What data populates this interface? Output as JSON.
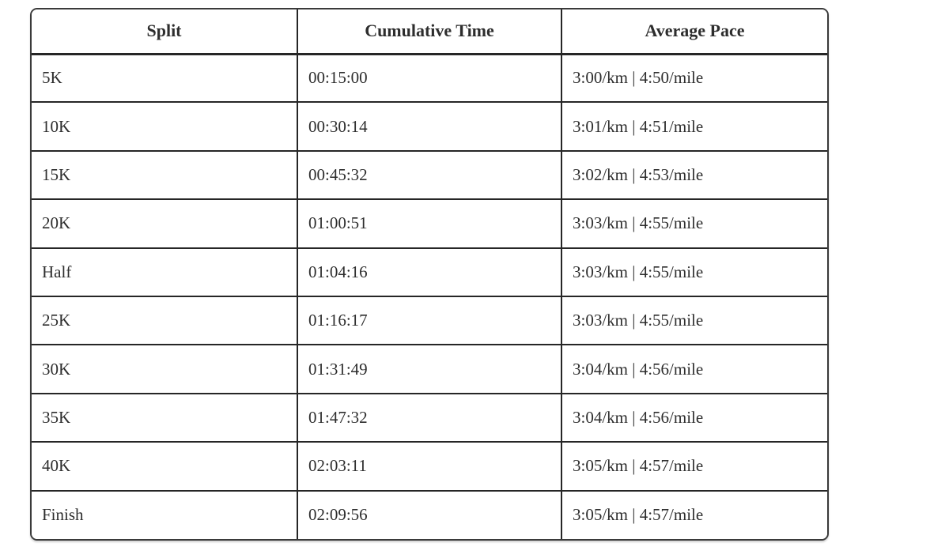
{
  "table": {
    "columns": [
      "Split",
      "Cumulative Time",
      "Average Pace"
    ],
    "rows": [
      [
        "5K",
        "00:15:00",
        "3:00/km | 4:50/mile"
      ],
      [
        "10K",
        "00:30:14",
        "3:01/km | 4:51/mile"
      ],
      [
        "15K",
        "00:45:32",
        "3:02/km | 4:53/mile"
      ],
      [
        "20K",
        "01:00:51",
        "3:03/km | 4:55/mile"
      ],
      [
        "Half",
        "01:04:16",
        "3:03/km | 4:55/mile"
      ],
      [
        "25K",
        "01:16:17",
        "3:03/km | 4:55/mile"
      ],
      [
        "30K",
        "01:31:49",
        "3:04/km | 4:56/mile"
      ],
      [
        "35K",
        "01:47:32",
        "3:04/km | 4:56/mile"
      ],
      [
        "40K",
        "02:03:11",
        "3:05/km | 4:57/mile"
      ],
      [
        "Finish",
        "02:09:56",
        "3:05/km | 4:57/mile"
      ]
    ]
  },
  "colors": {
    "text": "#2d2d2d",
    "inner_border": "#262626",
    "outer_border": "#3a3a3a",
    "background": "#ffffff"
  }
}
